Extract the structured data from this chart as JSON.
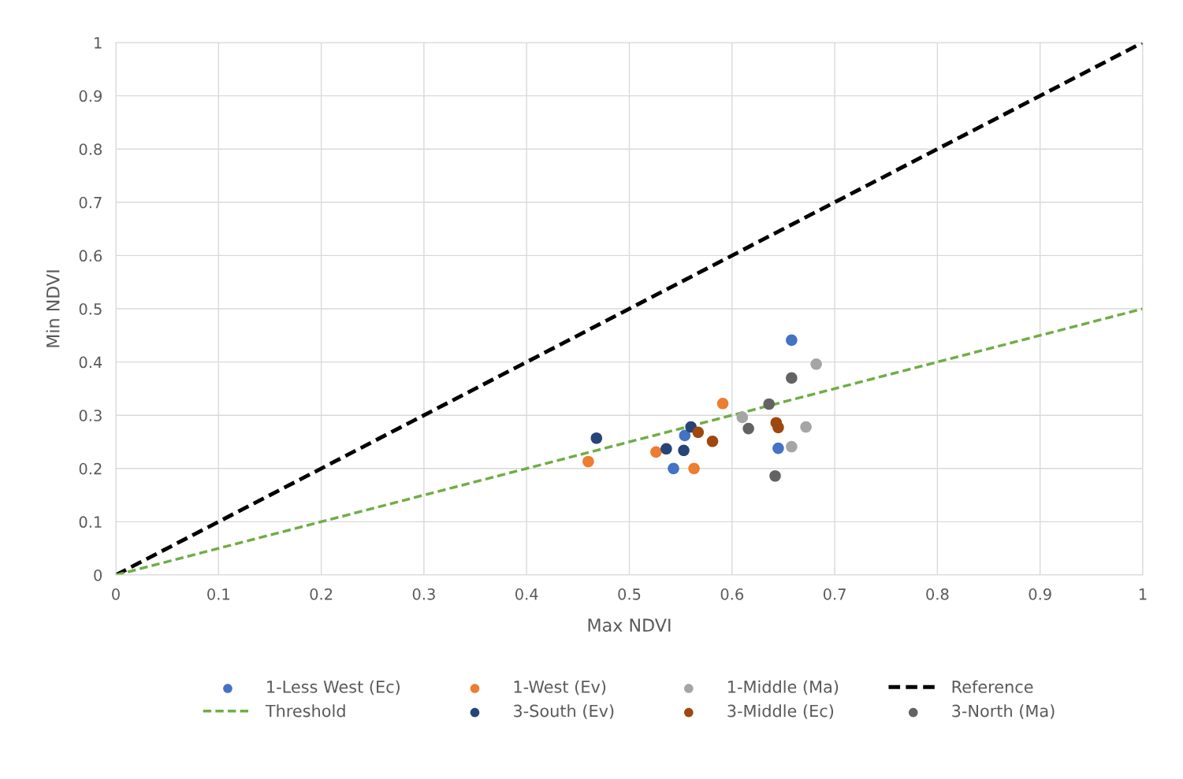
{
  "chart_data": {
    "type": "scatter",
    "xlabel": "Max NDVI",
    "ylabel": "Min NDVI",
    "xlim": [
      0,
      1
    ],
    "ylim": [
      0,
      1
    ],
    "xticks": [
      0,
      0.1,
      0.2,
      0.3,
      0.4,
      0.5,
      0.6,
      0.7,
      0.8,
      0.9,
      1
    ],
    "yticks": [
      0,
      0.1,
      0.2,
      0.3,
      0.4,
      0.5,
      0.6,
      0.7,
      0.8,
      0.9,
      1
    ],
    "grid": true,
    "legend": "bottom",
    "marker": "circle",
    "series": [
      {
        "name": "1-Less West (Ec)",
        "color": "#4472c4",
        "x": [
          0.658,
          0.554,
          0.543,
          0.645
        ],
        "values": [
          0.441,
          0.262,
          0.2,
          0.238
        ]
      },
      {
        "name": "1-West (Ev)",
        "color": "#ed7d31",
        "x": [
          0.591,
          0.46,
          0.526,
          0.563
        ],
        "values": [
          0.322,
          0.213,
          0.231,
          0.2
        ]
      },
      {
        "name": "1-Middle (Ma)",
        "color": "#a5a5a5",
        "x": [
          0.682,
          0.61,
          0.672,
          0.658
        ],
        "values": [
          0.396,
          0.296,
          0.278,
          0.241
        ]
      },
      {
        "name": "Reference",
        "type": "line",
        "marker": "none",
        "line_style": "dashed",
        "color": "#000000",
        "x": [
          0,
          1
        ],
        "values": [
          0,
          1
        ]
      },
      {
        "name": "Threshold",
        "type": "line",
        "marker": "none",
        "line_style": "dashed",
        "color": "#70ad47",
        "x": [
          0,
          1
        ],
        "values": [
          0,
          0.5
        ]
      },
      {
        "name": "3-South (Ev)",
        "color": "#264478",
        "x": [
          0.468,
          0.536,
          0.553,
          0.56
        ],
        "values": [
          0.257,
          0.237,
          0.234,
          0.278
        ]
      },
      {
        "name": "3-Middle (Ec)",
        "color": "#9e480e",
        "x": [
          0.567,
          0.581,
          0.643,
          0.645
        ],
        "values": [
          0.268,
          0.251,
          0.286,
          0.277
        ]
      },
      {
        "name": "3-North (Ma)",
        "color": "#636363",
        "x": [
          0.658,
          0.636,
          0.616,
          0.642
        ],
        "values": [
          0.37,
          0.321,
          0.275,
          0.186
        ]
      }
    ]
  }
}
